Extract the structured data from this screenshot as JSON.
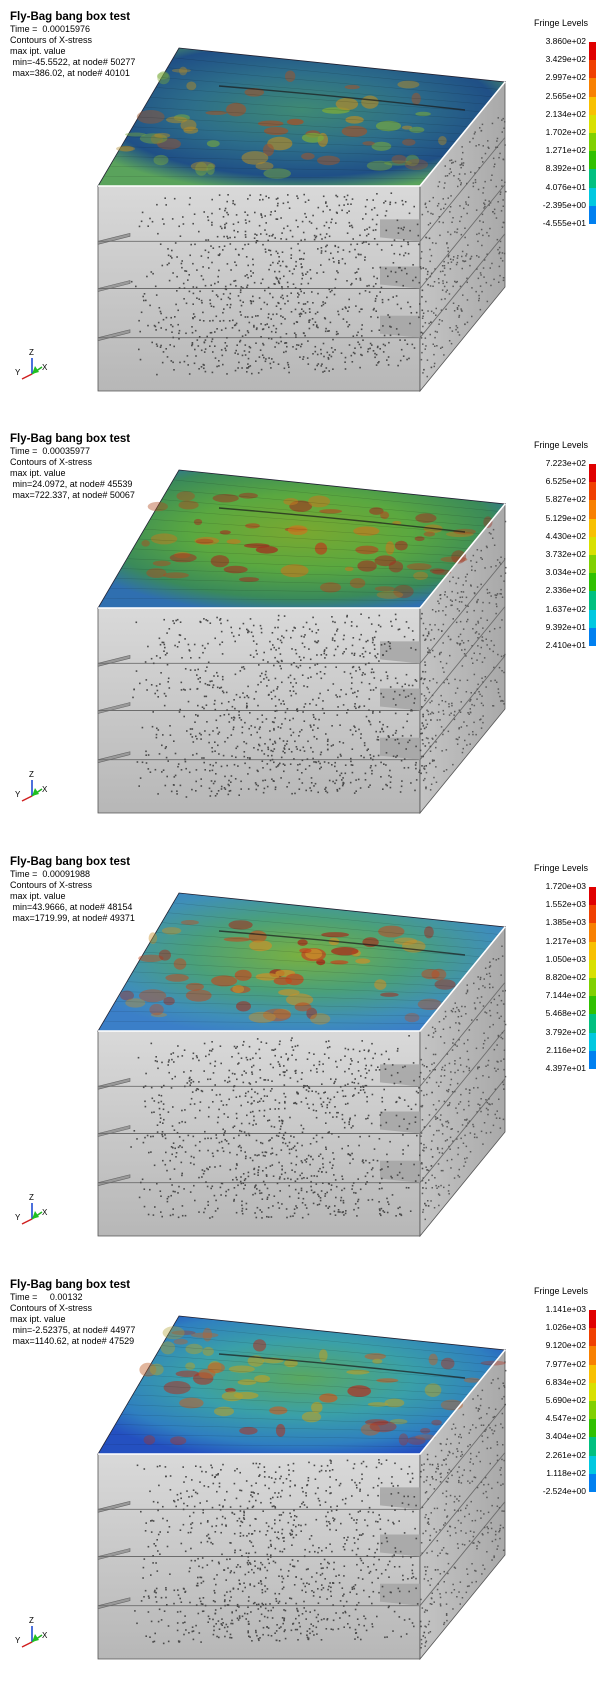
{
  "panels": [
    {
      "title": "Fly-Bag bang box test",
      "time": "Time =  0.00015976",
      "contour": "Contours of X-stress",
      "mode": "max ipt. value",
      "min": " min=-45.5522, at node# 50277",
      "max": " max=386.02, at node# 40101",
      "legend_title": "Fringe Levels",
      "levels": [
        "3.860e+02",
        "3.429e+02",
        "2.997e+02",
        "2.565e+02",
        "2.134e+02",
        "1.702e+02",
        "1.271e+02",
        "8.392e+01",
        "4.076e+01",
        "-2.395e+00",
        "-4.555e+01"
      ],
      "top_colors": [
        "#1f4f86",
        "#2d6e8a",
        "#3f8a74",
        "#5aa35c"
      ],
      "hot_colors": [
        "#7aaa3a",
        "#b08a2a",
        "#9a5530"
      ]
    },
    {
      "title": "Fly-Bag bang box test",
      "time": "Time =  0.00035977",
      "contour": "Contours of X-stress",
      "mode": "max ipt. value",
      "min": " min=24.0972, at node# 45539",
      "max": " max=722.337, at node# 50067",
      "legend_title": "Fringe Levels",
      "levels": [
        "7.223e+02",
        "6.525e+02",
        "5.827e+02",
        "5.129e+02",
        "4.430e+02",
        "3.732e+02",
        "3.034e+02",
        "2.336e+02",
        "1.637e+02",
        "9.392e+01",
        "2.410e+01"
      ],
      "top_colors": [
        "#3a8a5a",
        "#5aa840",
        "#7aa830",
        "#2f6fb0"
      ],
      "hot_colors": [
        "#c07a20",
        "#b04a20",
        "#a03020"
      ]
    },
    {
      "title": "Fly-Bag bang box test",
      "time": "Time =  0.00091988",
      "contour": "Contours of X-stress",
      "mode": "max ipt. value",
      "min": " min=43.9666, at node# 48154",
      "max": " max=1719.99, at node# 49371",
      "legend_title": "Fringe Levels",
      "levels": [
        "1.720e+03",
        "1.552e+03",
        "1.385e+03",
        "1.217e+03",
        "1.050e+03",
        "8.820e+02",
        "7.144e+02",
        "5.468e+02",
        "3.792e+02",
        "2.116e+02",
        "4.397e+01"
      ],
      "top_colors": [
        "#3f8fb8",
        "#4aa07a",
        "#7ab040",
        "#3b7fc8"
      ],
      "hot_colors": [
        "#c8902a",
        "#c04a20",
        "#a82818"
      ]
    },
    {
      "title": "Fly-Bag bang box test",
      "time": "Time =     0.00132",
      "contour": "Contours of X-stress",
      "mode": "max ipt. value",
      "min": " min=-2.52375, at node# 44977",
      "max": " max=1140.62, at node# 47529",
      "legend_title": "Fringe Levels",
      "levels": [
        "1.141e+03",
        "1.026e+03",
        "9.120e+02",
        "7.977e+02",
        "6.834e+02",
        "5.690e+02",
        "4.547e+02",
        "3.404e+02",
        "2.261e+02",
        "1.118e+02",
        "-2.524e+00"
      ],
      "top_colors": [
        "#2f7fc0",
        "#3aa0a8",
        "#5aa860",
        "#2450c0"
      ],
      "hot_colors": [
        "#b0a030",
        "#c06028",
        "#b03020"
      ]
    }
  ],
  "legend_colors": [
    "#e00000",
    "#f04000",
    "#f88000",
    "#f8c000",
    "#d8e000",
    "#80d000",
    "#30c000",
    "#00c080",
    "#00c8e0",
    "#0080f0",
    "#0000d0"
  ],
  "triad": {
    "z": "Z",
    "y": "Y",
    "x": "X"
  }
}
